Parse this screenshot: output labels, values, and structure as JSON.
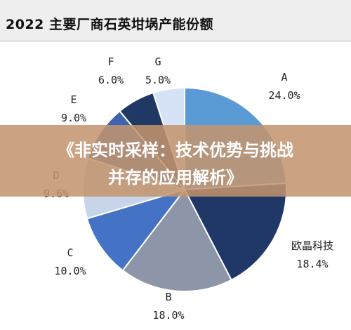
{
  "chart_data": {
    "type": "pie",
    "title": "2022 主要厂商石英坩埚产能份额",
    "slices": [
      {
        "name": "A",
        "value": "24.0%",
        "percent": 24.0,
        "color": "#5b9bd5"
      },
      {
        "name": "欧晶科技",
        "value": "18.4%",
        "percent": 18.4,
        "color": "#1f3868"
      },
      {
        "name": "B",
        "value": "18.0%",
        "percent": 18.0,
        "color": "#8c96a8"
      },
      {
        "name": "C",
        "value": "10.0%",
        "percent": 10.0,
        "color": "#4472c4"
      },
      {
        "name": "D",
        "value": "9.6%",
        "percent": 9.6,
        "color": "#c7d4ea"
      },
      {
        "name": "E",
        "value": "9.0%",
        "percent": 9.0,
        "color": "#3e64ad"
      },
      {
        "name": "F",
        "value": "6.0%",
        "percent": 6.0,
        "color": "#203864"
      },
      {
        "name": "G",
        "value": "5.0%",
        "percent": 5.0,
        "color": "#d6e2f5"
      }
    ]
  },
  "banner": {
    "line1": "《非实时采样：技术优势与挑战",
    "line2": "并存的应用解析》"
  }
}
